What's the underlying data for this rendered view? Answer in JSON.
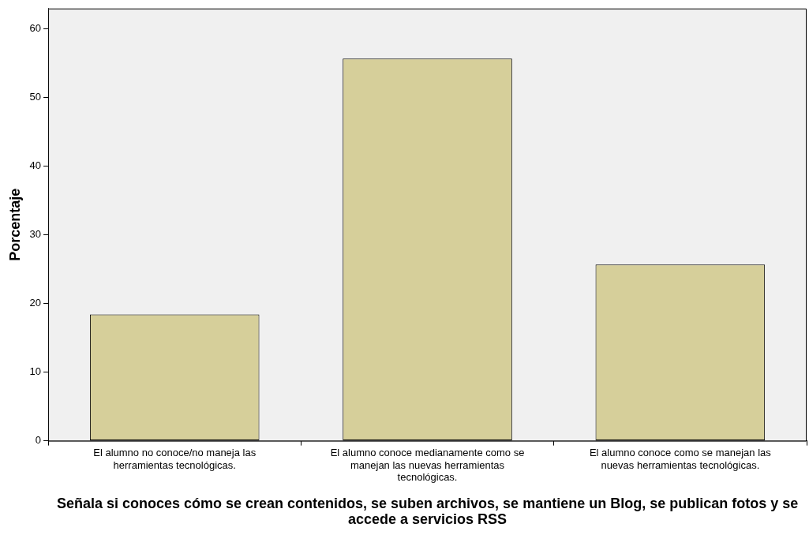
{
  "chart_data": {
    "type": "bar",
    "xlabel": "Señala si conoces cómo se crean contenidos, se suben archivos, se mantiene un Blog, se publican fotos y se accede a servicios RSS",
    "ylabel": "Porcentaje",
    "categories": [
      "El alumno no conoce/no maneja las herramientas tecnológicas.",
      "El alumno conoce medianamente como se manejan las nuevas herramientas tecnológicas.",
      "El alumno conoce como se manejan las nuevas herramientas tecnológicas."
    ],
    "values": [
      18.4,
      55.7,
      25.7
    ],
    "color": "#d6cf9a",
    "ylim": [
      0,
      63
    ],
    "yticks": [
      0,
      10,
      20,
      30,
      40,
      50,
      60
    ],
    "grid": false,
    "legend": false
  }
}
